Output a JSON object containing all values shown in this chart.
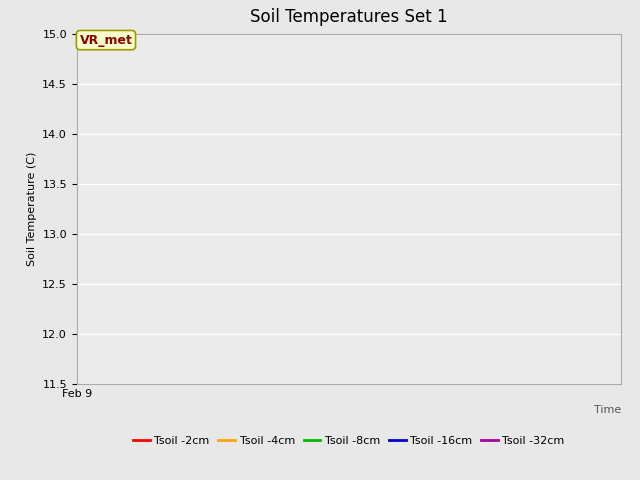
{
  "title": "Soil Temperatures Set 1",
  "xlabel": "Time",
  "ylabel": "Soil Temperature (C)",
  "ylim": [
    11.5,
    15.0
  ],
  "yticks": [
    11.5,
    12.0,
    12.5,
    13.0,
    13.5,
    14.0,
    14.5,
    15.0
  ],
  "x_tick_labels": [
    "Feb 9"
  ],
  "annotation_text": "VR_met",
  "annotation_color": "#8B0000",
  "annotation_bg": "#FFFFCC",
  "annotation_border": "#999900",
  "legend_entries": [
    {
      "label": "Tsoil -2cm",
      "color": "#FF0000"
    },
    {
      "label": "Tsoil -4cm",
      "color": "#FFA500"
    },
    {
      "label": "Tsoil -8cm",
      "color": "#00BB00"
    },
    {
      "label": "Tsoil -16cm",
      "color": "#0000CC"
    },
    {
      "label": "Tsoil -32cm",
      "color": "#AA00AA"
    }
  ],
  "bg_color": "#E8E8E8",
  "axes_bg_color": "#EBEBEB",
  "grid_color": "#FFFFFF",
  "title_fontsize": 12,
  "label_fontsize": 8,
  "tick_fontsize": 8,
  "legend_fontsize": 8
}
